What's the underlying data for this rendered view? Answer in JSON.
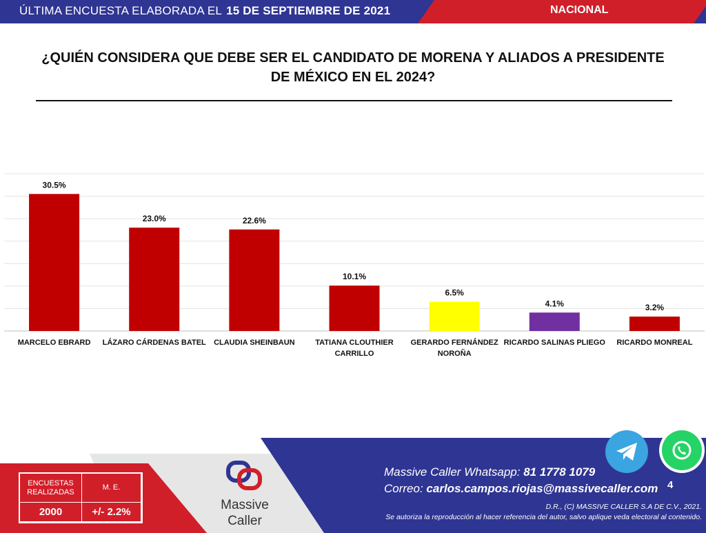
{
  "header": {
    "updated_label": "ÚLTIMA ENCUESTA ELABORADA EL",
    "updated_date": "15 DE SEPTIEMBRE DE 2021",
    "scope": "NACIONAL"
  },
  "question": {
    "line1": "¿QUIÉN CONSIDERA QUE DEBE SER EL CANDIDATO DE MORENA Y ALIADOS A PRESIDENTE",
    "line2": "DE MÉXICO EN EL 2024?"
  },
  "chart_data": {
    "type": "bar",
    "categories": [
      [
        "MARCELO EBRARD"
      ],
      [
        "LÁZARO CÁRDENAS BATEL"
      ],
      [
        "CLAUDIA SHEINBAUN"
      ],
      [
        "TATIANA CLOUTHIER",
        "CARRILLO"
      ],
      [
        "GERARDO FERNÁNDEZ",
        "NOROÑA"
      ],
      [
        "RICARDO SALINAS PLIEGO"
      ],
      [
        "RICARDO MONREAL"
      ]
    ],
    "values": [
      30.5,
      23.0,
      22.6,
      10.1,
      6.5,
      4.1,
      3.2
    ],
    "value_labels": [
      "30.5%",
      "23.0%",
      "22.6%",
      "10.1%",
      "6.5%",
      "4.1%",
      "3.2%"
    ],
    "bar_colors": [
      "#c00000",
      "#c00000",
      "#c00000",
      "#c00000",
      "#ffff00",
      "#7030a0",
      "#c00000"
    ],
    "ylim": [
      0,
      35
    ],
    "grid": true,
    "legend": "none",
    "title": "",
    "xlabel": "",
    "ylabel": ""
  },
  "footer": {
    "stats": {
      "surveys_label": "ENCUESTAS REALIZADAS",
      "surveys_value": "2000",
      "me_label": "M. E.",
      "me_value": "+/- 2.2%"
    },
    "logo": {
      "line1": "Massive",
      "line2": "Caller"
    },
    "whatsapp_label": "Massive Caller Whatsapp:",
    "whatsapp_number": "81 1778 1079",
    "email_label": "Correo:",
    "email": "carlos.campos.riojas@massivecaller.com",
    "page_number": "4",
    "copyright": "D.R., (C) MASSIVE CALLER S.A DE C.V., 2021.",
    "notice": "Se autoriza la reproducción al hacer referencia del autor, salvo aplique veda electoral al contenido.",
    "icons": [
      "telegram-icon",
      "whatsapp-icon"
    ],
    "colors": {
      "navy": "#2f3592",
      "red": "#d11f2a",
      "gray": "#e6e6e6"
    }
  }
}
